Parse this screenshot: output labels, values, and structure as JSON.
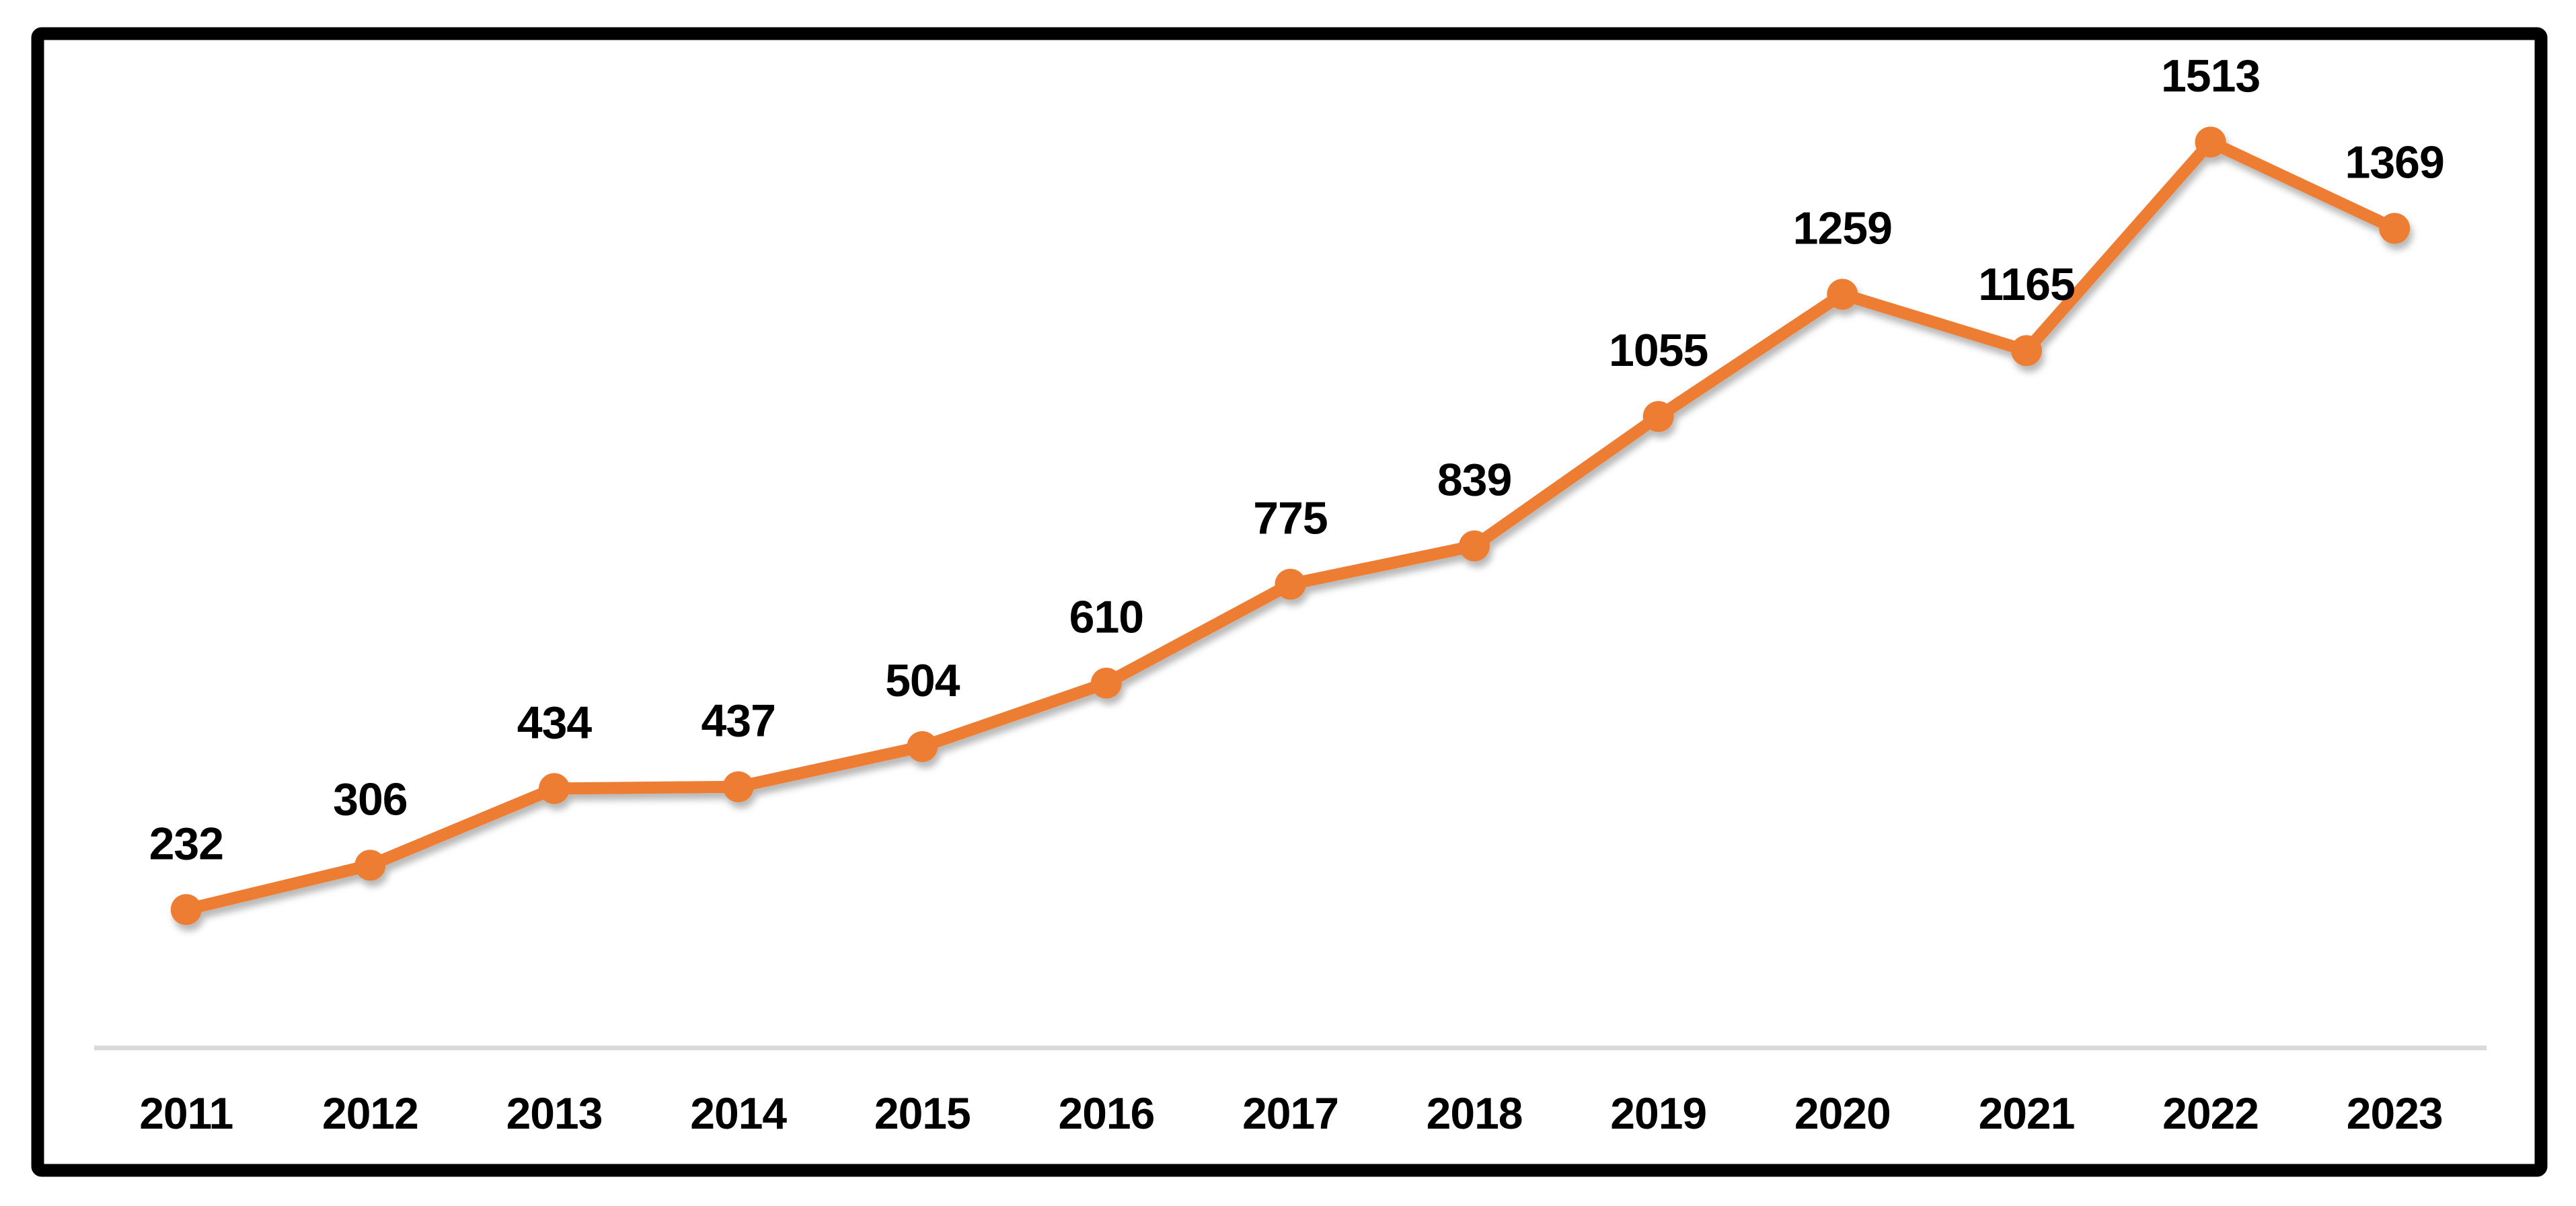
{
  "chart_data": {
    "type": "line",
    "title": "",
    "xlabel": "",
    "ylabel": "",
    "categories": [
      "2011",
      "2012",
      "2013",
      "2014",
      "2015",
      "2016",
      "2017",
      "2018",
      "2019",
      "2020",
      "2021",
      "2022",
      "2023"
    ],
    "values": [
      232,
      306,
      434,
      437,
      504,
      610,
      775,
      839,
      1055,
      1259,
      1165,
      1513,
      1369
    ],
    "data_labels": [
      "232",
      "306",
      "434",
      "437",
      "504",
      "610",
      "775",
      "839",
      "1055",
      "1259",
      "1165",
      "1513",
      "1369"
    ],
    "show_data_labels": true,
    "ylim": [
      0,
      1660
    ],
    "grid": false,
    "legend": "none",
    "marker": "circle",
    "colors": {
      "series_line": "#ED7D31",
      "marker_fill": "#ED7D31",
      "data_label_text": "#000000",
      "axis_tick_text": "#000000",
      "axis_line": "#D9D9D9",
      "frame_border": "#000000",
      "background": "#FFFFFF"
    }
  }
}
